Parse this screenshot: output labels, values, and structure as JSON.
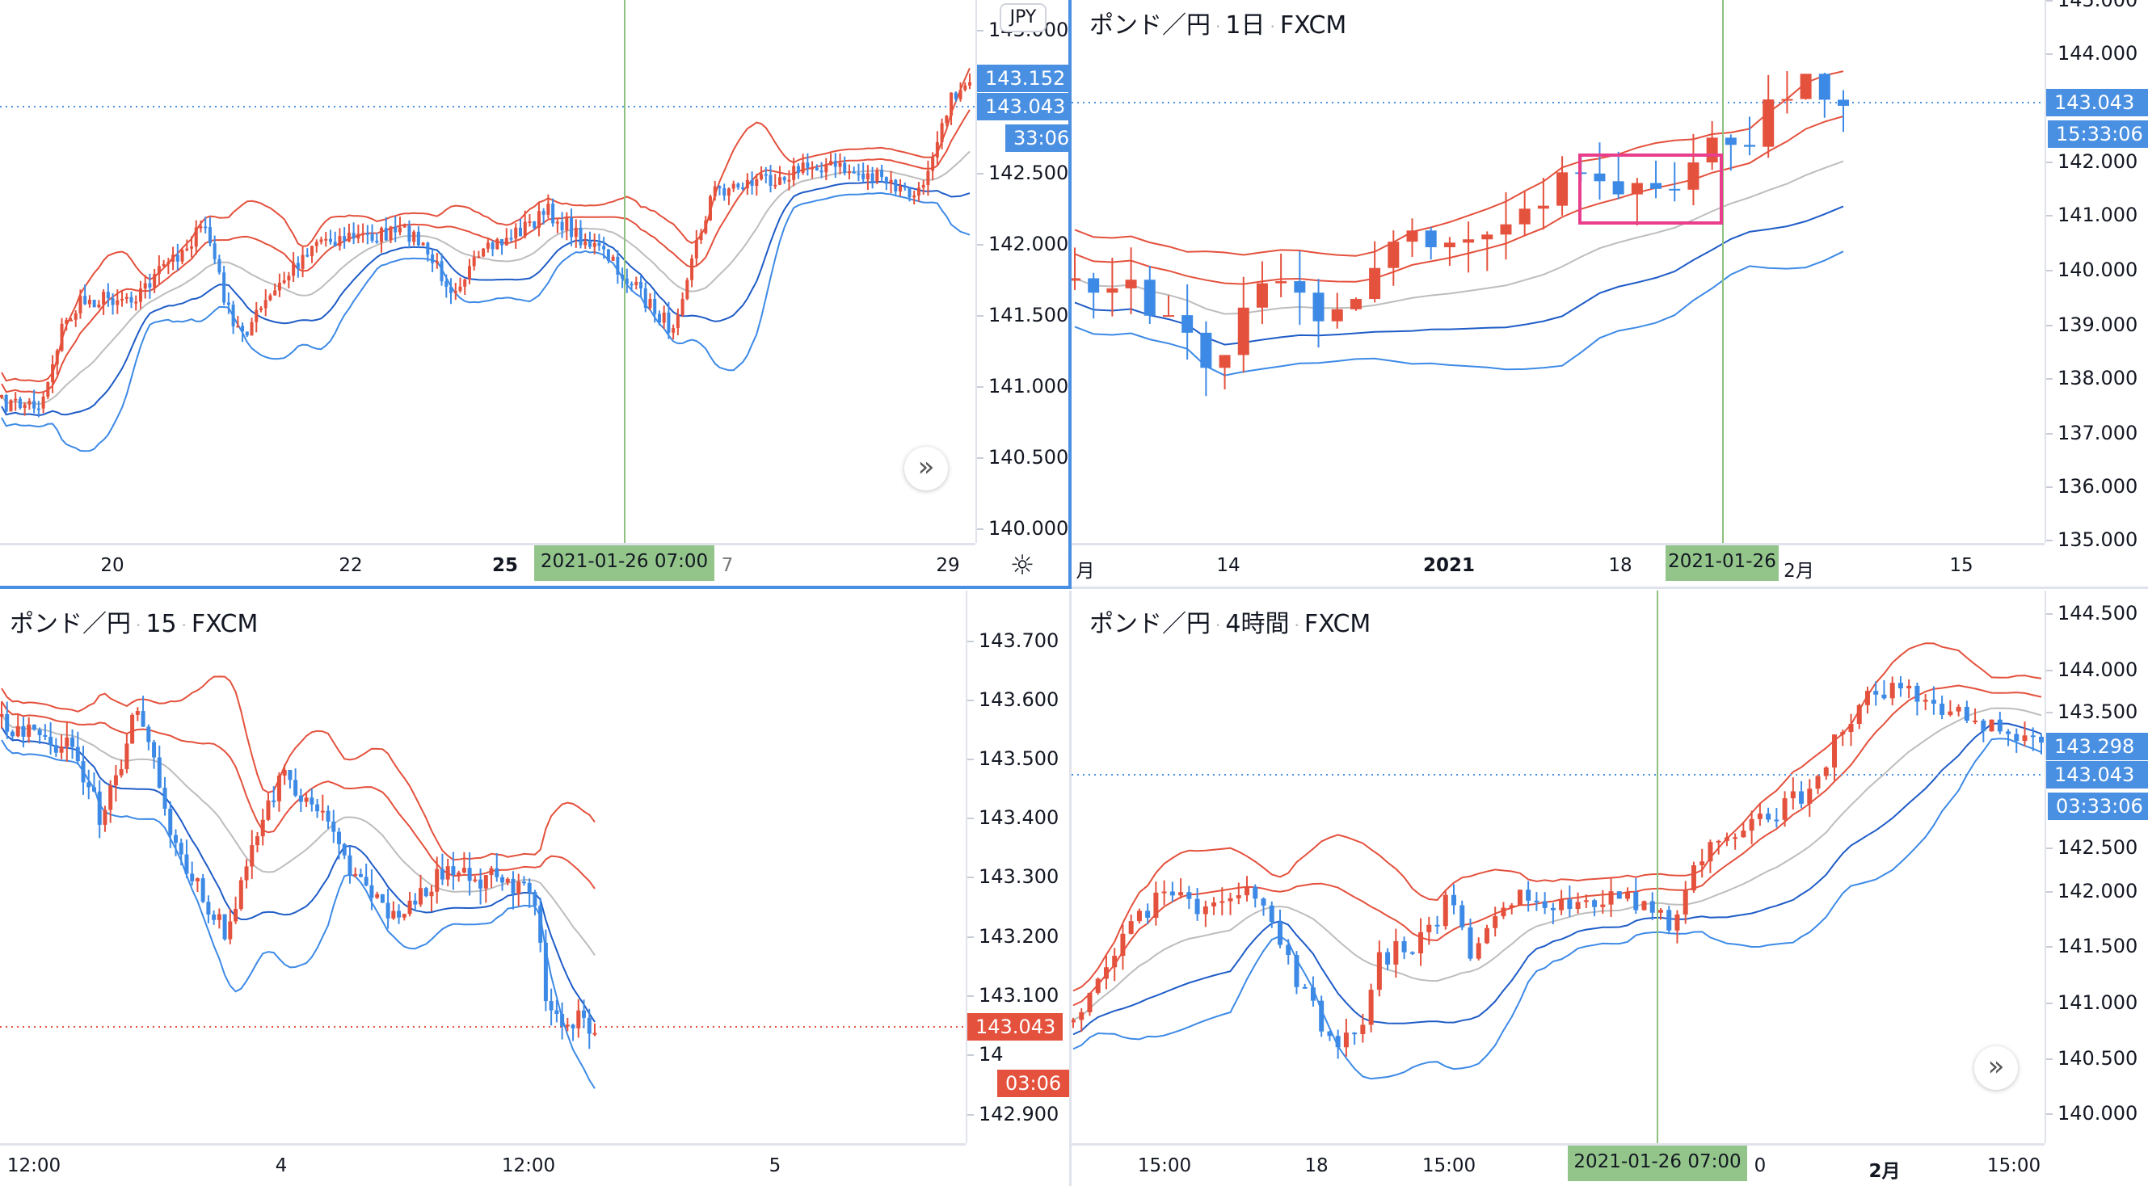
{
  "colors": {
    "up": "#e4513d",
    "down": "#3d8ae6",
    "accent": "#4a90e2",
    "crosshair_date": "#93c58a",
    "highlight": "#e83e8c"
  },
  "panels": {
    "top_left": {
      "currency_button": "JPY",
      "price_ticks": [
        "143.000",
        "142.500",
        "142.000",
        "141.500",
        "141.000",
        "140.500",
        "140.000"
      ],
      "time_labels": [
        "20",
        "22",
        "25",
        "29"
      ],
      "price_badges": {
        "high": "143.152",
        "last": "143.043",
        "countdown": "33:06"
      },
      "crosshair_date": "2021-01-26   07:00",
      "hidden_time_fragment": "7"
    },
    "top_right": {
      "title": {
        "symbol": "ポンド／円",
        "interval": "1日",
        "source": "FXCM"
      },
      "price_ticks": [
        "145.000",
        "144.000",
        "142.000",
        "141.000",
        "140.000",
        "139.000",
        "138.000",
        "137.000",
        "136.000",
        "135.000"
      ],
      "time_labels": [
        "月",
        "14",
        "2021",
        "18",
        "2月",
        "15"
      ],
      "price_badges": {
        "last": "143.043",
        "countdown": "15:33:06"
      },
      "crosshair_date": "2021-01-26"
    },
    "bottom_left": {
      "title": {
        "symbol": "ポンド／円",
        "interval": "15",
        "source": "FXCM"
      },
      "price_ticks": [
        "143.700",
        "143.600",
        "143.500",
        "143.400",
        "143.300",
        "143.200",
        "143.100",
        "142.900"
      ],
      "partial_tick": "14",
      "time_labels": [
        "12:00",
        "4",
        "12:00",
        "5"
      ],
      "price_badges": {
        "last": "143.043",
        "countdown": "03:06"
      }
    },
    "bottom_right": {
      "title": {
        "symbol": "ポンド／円",
        "interval": "4時間",
        "source": "FXCM"
      },
      "price_ticks": [
        "144.500",
        "144.000",
        "143.500",
        "142.500",
        "142.000",
        "141.500",
        "141.000",
        "140.500",
        "140.000"
      ],
      "time_labels": [
        "15:00",
        "18",
        "15:00",
        "2月",
        "15:00"
      ],
      "hidden_time_fragment": "0",
      "price_badges": {
        "high": "143.298",
        "last": "143.043",
        "countdown": "03:33:06"
      },
      "crosshair_date": "2021-01-26   07:00"
    }
  }
}
